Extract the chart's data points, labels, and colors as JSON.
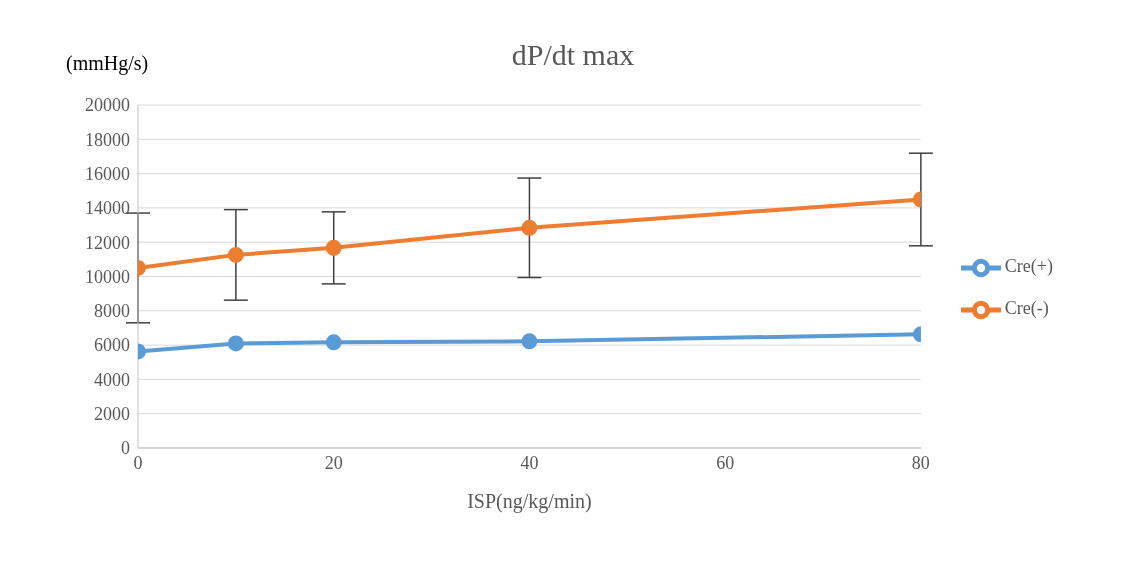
{
  "chart_data": {
    "type": "line",
    "title": "dP/dt max",
    "xlabel": "ISP(ng/kg/min)",
    "ylabel": "(mmHg/s)",
    "x": [
      0,
      10,
      20,
      40,
      80
    ],
    "series": [
      {
        "name": "Cre(+)",
        "color": "#5b9bd5",
        "values": [
          5630,
          6100,
          6160,
          6220,
          6630
        ]
      },
      {
        "name": "Cre(-)",
        "color": "#ed7d31",
        "values": [
          10500,
          11260,
          11670,
          12840,
          14490
        ],
        "errors": [
          3200,
          2640,
          2100,
          2900,
          2700
        ]
      }
    ],
    "xlim": [
      0,
      80
    ],
    "xticks": [
      0,
      20,
      40,
      60,
      80
    ],
    "ylim": [
      0,
      20000
    ],
    "yticks": [
      0,
      2000,
      4000,
      6000,
      8000,
      10000,
      12000,
      14000,
      16000,
      18000,
      20000
    ],
    "grid": "y",
    "legend": "right",
    "marker": "circle",
    "line_style": "solid"
  }
}
